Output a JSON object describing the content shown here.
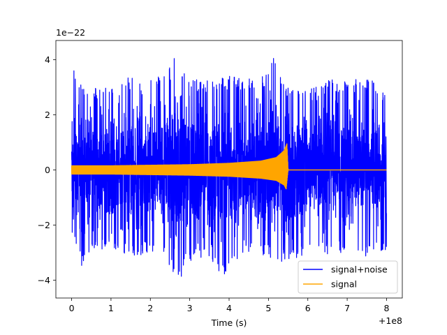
{
  "chart_data": {
    "type": "line",
    "title": "",
    "xlabel": "Time (s)",
    "ylabel": "",
    "x_offset_label": "+1e8",
    "y_scale_label": "1e−22",
    "xlim": [
      -0.4,
      8.4
    ],
    "ylim": [
      -4.65,
      4.7
    ],
    "x_ticks": [
      0,
      1,
      2,
      3,
      4,
      5,
      6,
      7,
      8
    ],
    "x_tick_labels": [
      "0",
      "1",
      "2",
      "3",
      "4",
      "5",
      "6",
      "7",
      "8"
    ],
    "y_ticks": [
      -4,
      -2,
      0,
      2,
      4
    ],
    "y_tick_labels": [
      "−4",
      "−2",
      "0",
      "2",
      "4"
    ],
    "grid": false,
    "legend_position": "lower-right",
    "series": [
      {
        "name": "signal+noise",
        "color": "#0000ff",
        "x_range": [
          0,
          8
        ],
        "envelope_upper": [
          [
            0.0,
            2.4
          ],
          [
            0.05,
            3.9
          ],
          [
            0.2,
            3.1
          ],
          [
            0.5,
            3.0
          ],
          [
            1.0,
            3.0
          ],
          [
            1.5,
            3.4
          ],
          [
            2.0,
            3.3
          ],
          [
            2.5,
            3.8
          ],
          [
            2.65,
            4.2
          ],
          [
            3.0,
            3.3
          ],
          [
            3.5,
            3.4
          ],
          [
            4.0,
            3.4
          ],
          [
            4.5,
            3.3
          ],
          [
            5.0,
            3.5
          ],
          [
            5.15,
            4.2
          ],
          [
            5.5,
            3.0
          ],
          [
            6.0,
            2.9
          ],
          [
            6.5,
            3.3
          ],
          [
            7.0,
            3.2
          ],
          [
            7.5,
            3.4
          ],
          [
            8.0,
            2.8
          ]
        ],
        "envelope_lower": [
          [
            0.0,
            -2.4
          ],
          [
            0.2,
            -3.2
          ],
          [
            0.3,
            -3.7
          ],
          [
            0.5,
            -2.9
          ],
          [
            1.0,
            -3.0
          ],
          [
            1.5,
            -3.2
          ],
          [
            2.0,
            -3.0
          ],
          [
            2.4,
            -3.1
          ],
          [
            2.65,
            -4.25
          ],
          [
            3.0,
            -3.3
          ],
          [
            3.5,
            -3.3
          ],
          [
            3.8,
            -4.1
          ],
          [
            4.0,
            -3.4
          ],
          [
            4.5,
            -3.0
          ],
          [
            5.0,
            -3.2
          ],
          [
            5.5,
            -3.4
          ],
          [
            6.0,
            -3.0
          ],
          [
            6.5,
            -3.1
          ],
          [
            7.0,
            -3.0
          ],
          [
            7.5,
            -3.2
          ],
          [
            8.0,
            -2.9
          ]
        ]
      },
      {
        "name": "signal",
        "color": "#ffa500",
        "x_range": [
          0,
          8
        ],
        "envelope_upper": [
          [
            0.0,
            0.15
          ],
          [
            1.0,
            0.15
          ],
          [
            2.0,
            0.17
          ],
          [
            3.0,
            0.19
          ],
          [
            4.0,
            0.24
          ],
          [
            4.8,
            0.32
          ],
          [
            5.2,
            0.45
          ],
          [
            5.4,
            0.7
          ],
          [
            5.47,
            0.95
          ],
          [
            5.5,
            0.0
          ],
          [
            8.0,
            0.0
          ]
        ],
        "envelope_lower": [
          [
            0.0,
            -0.15
          ],
          [
            1.0,
            -0.15
          ],
          [
            2.0,
            -0.17
          ],
          [
            3.0,
            -0.19
          ],
          [
            4.0,
            -0.23
          ],
          [
            4.8,
            -0.3
          ],
          [
            5.2,
            -0.38
          ],
          [
            5.4,
            -0.55
          ],
          [
            5.45,
            -0.7
          ],
          [
            5.5,
            0.0
          ],
          [
            8.0,
            0.0
          ]
        ]
      }
    ]
  }
}
